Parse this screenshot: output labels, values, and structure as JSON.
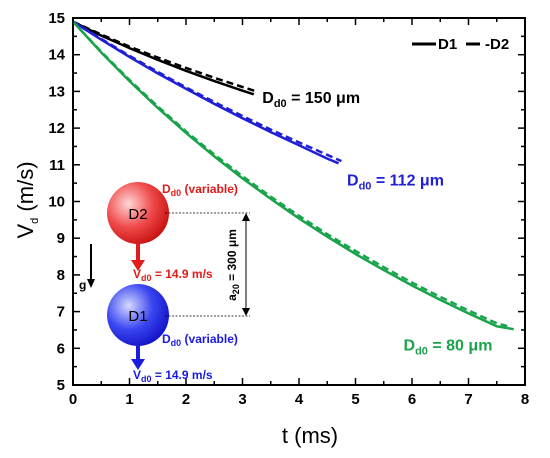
{
  "chart_data": {
    "type": "line",
    "xlabel": "t (ms)",
    "ylabel_main": "V",
    "ylabel_sub": "d",
    "ylabel_unit": " (m/s)",
    "xlim": [
      0,
      8
    ],
    "ylim": [
      5,
      15
    ],
    "xticks": [
      "0",
      "1",
      "2",
      "3",
      "4",
      "5",
      "6",
      "7",
      "8"
    ],
    "yticks": [
      "5",
      "6",
      "7",
      "8",
      "9",
      "10",
      "11",
      "12",
      "13",
      "14",
      "15"
    ],
    "grid": false,
    "legend": {
      "position": "top-right",
      "entries": [
        "D1",
        "-D2"
      ]
    },
    "series": [
      {
        "color": "#000000",
        "label_main": "D",
        "label_sub": "d0",
        "label_value": " = 150 μm",
        "label_anchor": [
          3.35,
          12.85
        ],
        "d1": {
          "x": [
            0,
            0.5,
            1,
            1.5,
            2,
            2.5,
            3,
            3.2
          ],
          "y": [
            14.9,
            14.52,
            14.18,
            13.86,
            13.56,
            13.28,
            13.02,
            12.92
          ]
        },
        "d2": {
          "x": [
            0,
            0.5,
            1,
            1.5,
            2,
            2.5,
            3,
            3.25
          ],
          "y": [
            14.9,
            14.55,
            14.22,
            13.92,
            13.64,
            13.37,
            13.12,
            13.0
          ]
        }
      },
      {
        "color": "#1f1fd6",
        "label_main": "D",
        "label_sub": "d0",
        "label_value": " = 112 μm",
        "label_anchor": [
          4.85,
          10.6
        ],
        "d1": {
          "x": [
            0,
            0.5,
            1,
            1.5,
            2,
            2.5,
            3,
            3.5,
            4,
            4.5,
            4.7
          ],
          "y": [
            14.9,
            14.41,
            13.94,
            13.49,
            13.07,
            12.66,
            12.27,
            11.89,
            11.53,
            11.17,
            11.04
          ]
        },
        "d2": {
          "x": [
            0,
            0.5,
            1,
            1.5,
            2,
            2.5,
            3,
            3.5,
            4,
            4.5,
            4.75
          ],
          "y": [
            14.9,
            14.43,
            13.97,
            13.53,
            13.11,
            12.71,
            12.33,
            11.96,
            11.61,
            11.27,
            11.1
          ]
        }
      },
      {
        "color": "#19a34a",
        "label_main": "D",
        "label_sub": "d0",
        "label_value": " = 80 μm",
        "label_anchor": [
          5.85,
          6.1
        ],
        "d1": {
          "x": [
            0,
            0.5,
            1,
            1.5,
            2,
            2.5,
            3,
            3.5,
            4,
            4.5,
            5,
            5.5,
            6,
            6.5,
            7,
            7.5,
            7.8
          ],
          "y": [
            14.9,
            14.06,
            13.28,
            12.55,
            11.87,
            11.23,
            10.63,
            10.07,
            9.54,
            9.04,
            8.57,
            8.13,
            7.71,
            7.32,
            6.95,
            6.6,
            6.52
          ]
        },
        "d2": {
          "x": [
            0,
            0.5,
            1,
            1.5,
            2,
            2.5,
            3,
            3.5,
            4,
            4.5,
            5,
            5.5,
            6,
            6.5,
            7,
            7.5,
            7.7
          ],
          "y": [
            14.9,
            14.08,
            13.31,
            12.59,
            11.91,
            11.28,
            10.69,
            10.13,
            9.61,
            9.11,
            8.65,
            8.21,
            7.79,
            7.4,
            7.03,
            6.68,
            6.6
          ]
        }
      }
    ],
    "inset": {
      "upper_droplet": {
        "label": "D2",
        "size_main": "D",
        "size_sub": "d0",
        "size_value": " (variable)",
        "velocity_main": "V",
        "velocity_sub": "d0",
        "velocity_value": " = 14.9 m/s",
        "color": "#e21b1b"
      },
      "lower_droplet": {
        "label": "D1",
        "size_main": "D",
        "size_sub": "d0",
        "size_value": " (variable)",
        "velocity_main": "V",
        "velocity_sub": "d0",
        "velocity_value": " = 14.9 m/s",
        "color": "#1a1ae0"
      },
      "spacing_main": "a",
      "spacing_sub": "20",
      "spacing_value": " = 300 μm",
      "gravity_label": "g"
    }
  }
}
